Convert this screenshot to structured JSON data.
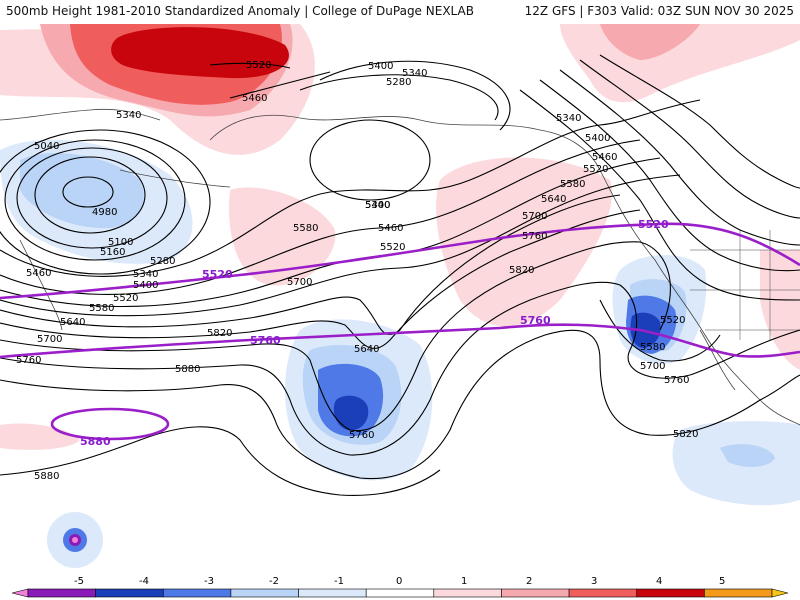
{
  "header": {
    "left_title": "500mb Height 1981-2010 Standardized Anomaly | College of DuPage NEXLAB",
    "right_title": "12Z GFS | F303 Valid: 03Z SUN NOV 30 2025"
  },
  "colors": {
    "contour": "#000000",
    "climatology_line": "#9b1fc9",
    "neg1": "#dce9fb",
    "neg2": "#b9d4f6",
    "neg3": "#4f79e6",
    "neg4": "#1b3fb8",
    "pos1": "#fbd9dc",
    "pos2": "#f6a9ae",
    "pos3": "#ef5e5c",
    "pos4": "#c8050c",
    "coast": "#444444"
  },
  "contour_labels": [
    "5520",
    "5400",
    "5340",
    "5460",
    "5280",
    "5340",
    "5040",
    "4980",
    "5100",
    "5160",
    "5280",
    "5340",
    "5400",
    "5460",
    "5520",
    "5580",
    "5640",
    "5700",
    "5760",
    "5880",
    "5880",
    "5580",
    "5700",
    "5820",
    "5640",
    "5760",
    "5400",
    "5520",
    "5460",
    "5340",
    "5400",
    "5460",
    "5520",
    "5580",
    "5640",
    "5700",
    "5760",
    "5820",
    "5520",
    "5580",
    "5700",
    "5760",
    "5820",
    "5340"
  ],
  "climatology_labels": [
    "5520",
    "5520",
    "5760",
    "5760",
    "5880"
  ],
  "colorbar": {
    "labels": [
      "-5",
      "-4",
      "-3",
      "-2",
      "-1",
      "0",
      "1",
      "2",
      "3",
      "4",
      "5"
    ],
    "colors": [
      "#f080d8",
      "#8a1bb8",
      "#1b3fb8",
      "#4f79e6",
      "#b9d4f6",
      "#dce9fb",
      "#ffffff",
      "#fbd9dc",
      "#f6a9ae",
      "#ef5e5c",
      "#c8050c",
      "#f39a1a",
      "#f5c518"
    ]
  }
}
